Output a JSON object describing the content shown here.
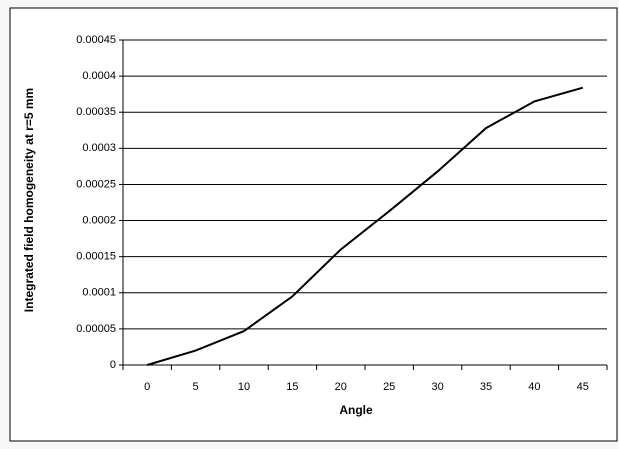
{
  "chart_data": {
    "type": "line",
    "x_label": "Angle",
    "y_label": "Integrated field homogeneity at r=5 mm",
    "categories": [
      "0",
      "5",
      "10",
      "15",
      "20",
      "25",
      "30",
      "35",
      "40",
      "45"
    ],
    "series": [
      {
        "name": "Integrated field homogeneity",
        "color": "#000000",
        "values": [
          0,
          2e-05,
          4.7e-05,
          9.5e-05,
          0.00016,
          0.000213,
          0.000268,
          0.000328,
          0.000365,
          0.000384
        ]
      }
    ],
    "ylim": [
      0,
      0.00045
    ],
    "yticks": [
      0,
      5e-05,
      0.0001,
      0.00015,
      0.0002,
      0.00025,
      0.0003,
      0.00035,
      0.0004,
      0.00045
    ],
    "grid": true
  }
}
